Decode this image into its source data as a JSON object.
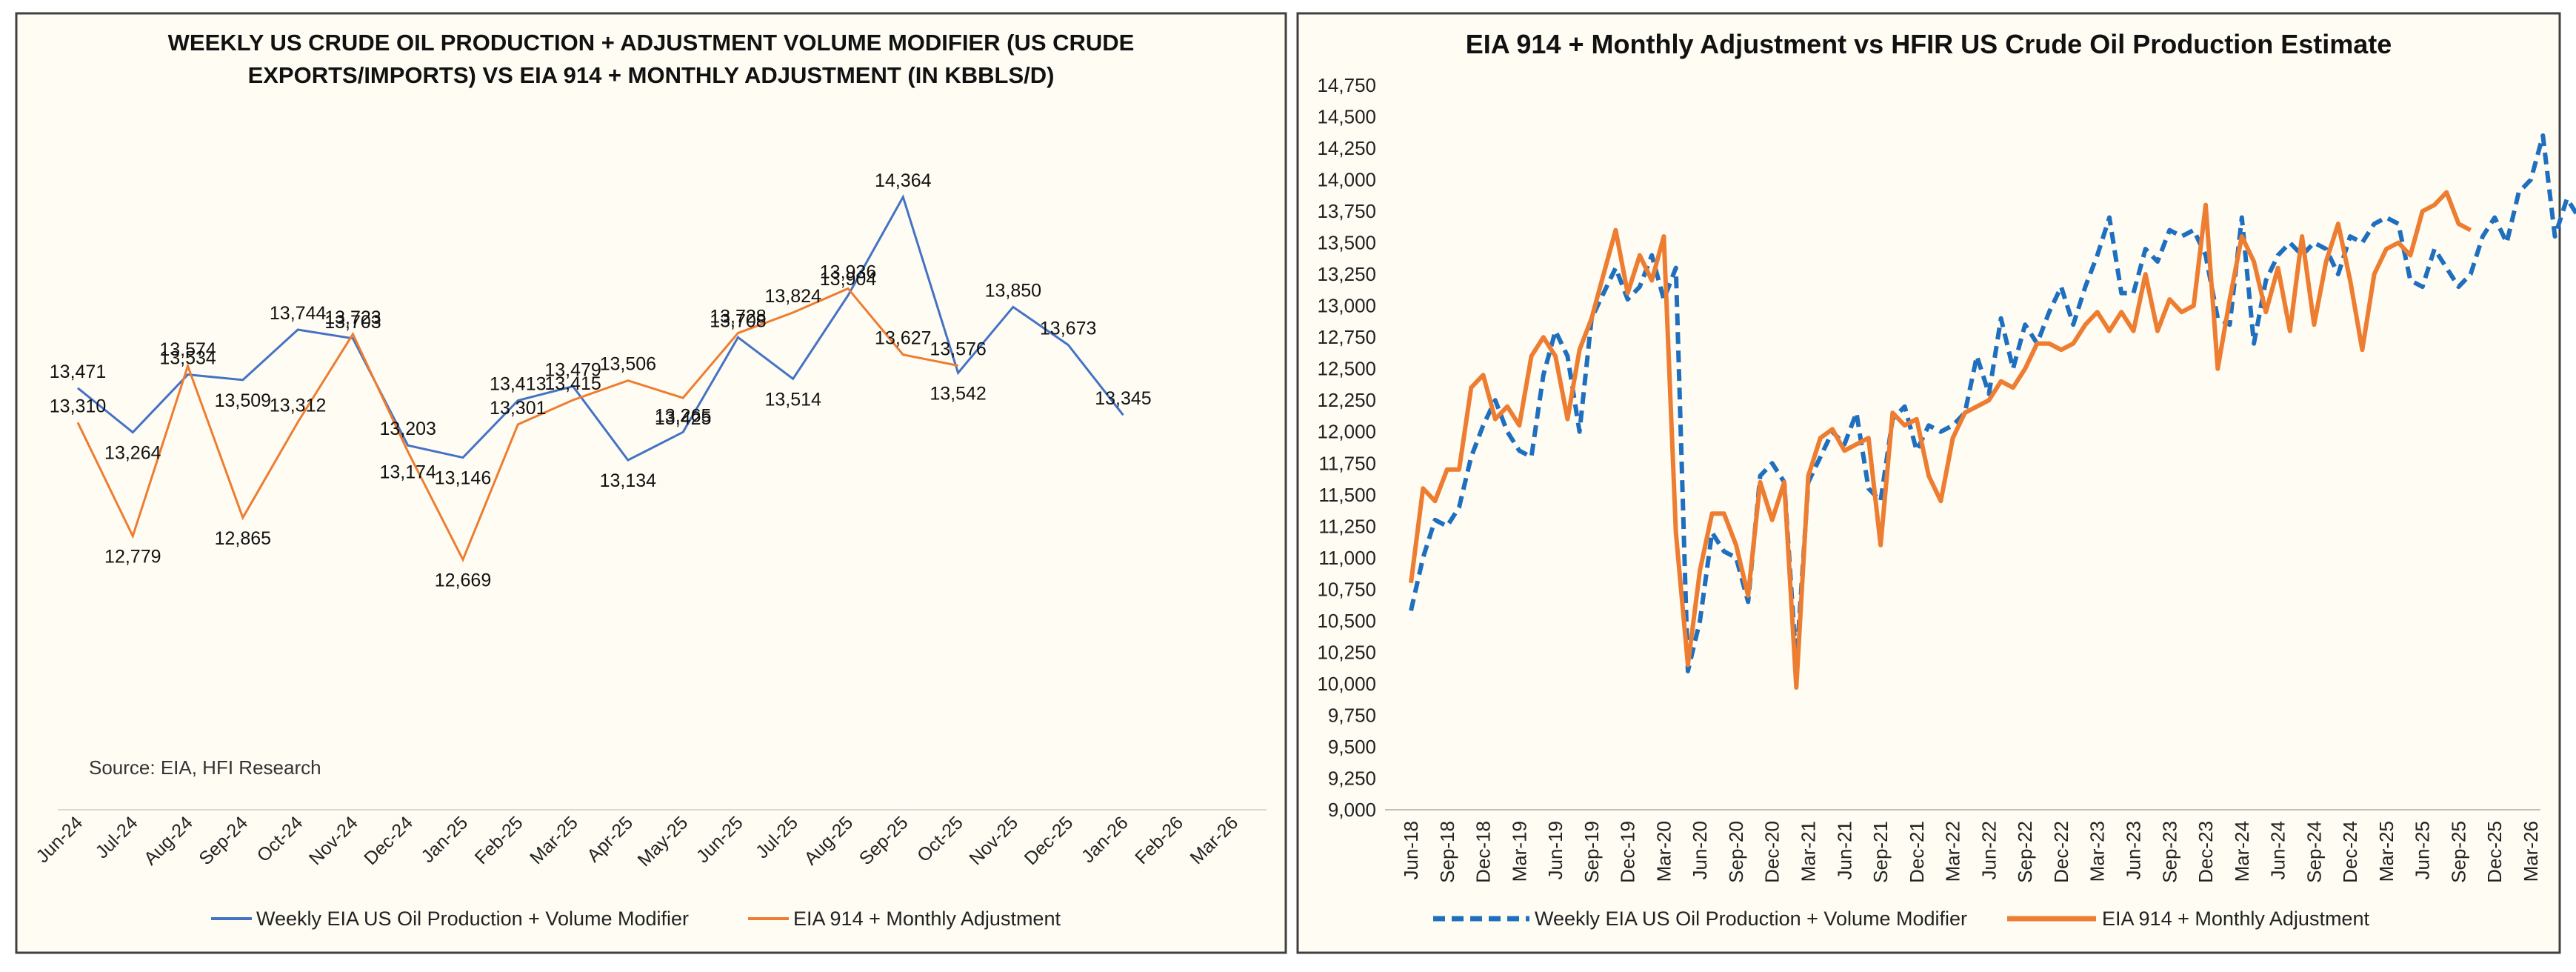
{
  "chart_data": [
    {
      "type": "line",
      "title": "WEEKLY US CRUDE OIL PRODUCTION + ADJUSTMENT VOLUME MODIFIER (US CRUDE EXPORTS/IMPORTS) VS EIA 914 + MONTHLY ADJUSTMENT (IN KBBLS/D)",
      "title_lines": [
        "WEEKLY US CRUDE OIL PRODUCTION + ADJUSTMENT VOLUME MODIFIER (US CRUDE",
        "EXPORTS/IMPORTS) VS EIA 914 + MONTHLY ADJUSTMENT (IN KBBLS/D)"
      ],
      "source_note": "Source: EIA, HFI Research",
      "categories": [
        "Jun-24",
        "Jul-24",
        "Aug-24",
        "Sep-24",
        "Oct-24",
        "Nov-24",
        "Dec-24",
        "Jan-25",
        "Feb-25",
        "Mar-25",
        "Apr-25",
        "May-25",
        "Jun-25",
        "Jul-25",
        "Aug-25",
        "Sep-25",
        "Oct-25",
        "Nov-25",
        "Dec-25",
        "Jan-26",
        "Feb-26",
        "Mar-26"
      ],
      "legend_position": "bottom",
      "series": [
        {
          "name": "Weekly EIA US Oil Production + Volume Modifier",
          "color": "#4472c4",
          "values": [
            13471,
            13264,
            13534,
            13509,
            13744,
            13703,
            13203,
            13146,
            13413,
            13479,
            13134,
            13265,
            13708,
            13514,
            13904,
            14364,
            13542,
            13850,
            13673,
            13345,
            null,
            null
          ]
        },
        {
          "name": "EIA 914 + Monthly Adjustment",
          "color": "#ed7d31",
          "values": [
            13310,
            12779,
            13574,
            12865,
            13312,
            13723,
            13174,
            12669,
            13301,
            13415,
            13506,
            13425,
            13728,
            13824,
            13936,
            13627,
            13576,
            null,
            null,
            null,
            null,
            null
          ]
        }
      ],
      "labels": {
        "weekly": [
          "13,471",
          "13,264",
          "13,534",
          "13,509",
          "13,744",
          "13,703",
          "13,203",
          "13,146",
          "13,413",
          "13,479",
          "13,134",
          "13,265",
          "13,708",
          "13,514",
          "13,904",
          "14,364",
          "13,542",
          "13,850",
          "13,673",
          "13,345"
        ],
        "eia": [
          "13,310",
          "12,779",
          "13,574",
          "12,865",
          "13,312",
          "13,723",
          "13,174",
          "12,669",
          "13,301",
          "13,415",
          "13,506",
          "13,425",
          "13,728",
          "13,824",
          "13,936",
          "13,627",
          "13,576"
        ]
      }
    },
    {
      "type": "line",
      "title": "EIA 914 + Monthly Adjustment vs HFIR US Crude Oil Production Estimate",
      "ylim": [
        9000,
        14750
      ],
      "yticks": [
        "9,000",
        "9,250",
        "9,500",
        "9,750",
        "10,000",
        "10,250",
        "10,500",
        "10,750",
        "11,000",
        "11,250",
        "11,500",
        "11,750",
        "12,000",
        "12,250",
        "12,500",
        "12,750",
        "13,000",
        "13,250",
        "13,500",
        "13,750",
        "14,000",
        "14,250",
        "14,500",
        "14,750"
      ],
      "xticks": [
        "Jun-18",
        "Sep-18",
        "Dec-18",
        "Mar-19",
        "Jun-19",
        "Sep-19",
        "Dec-19",
        "Mar-20",
        "Jun-20",
        "Sep-20",
        "Dec-20",
        "Mar-21",
        "Jun-21",
        "Sep-21",
        "Dec-21",
        "Mar-22",
        "Jun-22",
        "Sep-22",
        "Dec-22",
        "Mar-23",
        "Jun-23",
        "Sep-23",
        "Dec-23",
        "Mar-24",
        "Jun-24",
        "Sep-24",
        "Dec-24",
        "Mar-25",
        "Jun-25",
        "Sep-25",
        "Dec-25",
        "Mar-26"
      ],
      "x_start": "Jun-18",
      "legend_position": "bottom",
      "series": [
        {
          "name": "Weekly EIA US Oil Production + Volume Modifier",
          "color": "#1f6fbf",
          "style": "dashed",
          "values": [
            10580,
            11000,
            11300,
            11250,
            11400,
            11800,
            12050,
            12250,
            12000,
            11850,
            11800,
            12450,
            12800,
            12600,
            12000,
            12900,
            13100,
            13300,
            13050,
            13150,
            13400,
            13050,
            13300,
            10100,
            10500,
            11200,
            11050,
            11000,
            10650,
            11650,
            11750,
            11600,
            10150,
            11600,
            11800,
            12000,
            11900,
            12150,
            11550,
            11450,
            12100,
            12200,
            11850,
            12050,
            12000,
            12050,
            12150,
            12600,
            12300,
            12900,
            12500,
            12850,
            12700,
            12950,
            13150,
            12850,
            13150,
            13400,
            13700,
            13100,
            13100,
            13450,
            13350,
            13600,
            13550,
            13600,
            13400,
            12900,
            12850,
            13700,
            12700,
            13200,
            13400,
            13500,
            13400,
            13500,
            13450,
            13250,
            13550,
            13500,
            13650,
            13700,
            13650,
            13200,
            13150,
            13450,
            13300,
            13150,
            13250,
            13550,
            13700,
            13500,
            13900,
            14000,
            14350,
            13550,
            13850,
            13700,
            13350
          ]
        },
        {
          "name": "EIA 914 + Monthly Adjustment",
          "color": "#ed7d31",
          "style": "solid",
          "values": [
            10800,
            11550,
            11450,
            11700,
            11700,
            12350,
            12450,
            12100,
            12200,
            12050,
            12600,
            12750,
            12600,
            12100,
            12650,
            12900,
            13250,
            13600,
            13100,
            13400,
            13200,
            13550,
            11200,
            10150,
            10900,
            11350,
            11350,
            11100,
            10700,
            11600,
            11300,
            11600,
            9970,
            11650,
            11950,
            12020,
            11850,
            11900,
            11950,
            11100,
            12150,
            12050,
            12100,
            11650,
            11450,
            11950,
            12150,
            12200,
            12250,
            12400,
            12350,
            12500,
            12700,
            12700,
            12650,
            12700,
            12850,
            12950,
            12800,
            12950,
            12800,
            13250,
            12800,
            13050,
            12950,
            13000,
            13800,
            12500,
            13050,
            13550,
            13350,
            12950,
            13300,
            12800,
            13550,
            12850,
            13350,
            13650,
            13200,
            12650,
            13250,
            13450,
            13500,
            13400,
            13750,
            13800,
            13900,
            13650,
            13600
          ]
        }
      ]
    }
  ]
}
